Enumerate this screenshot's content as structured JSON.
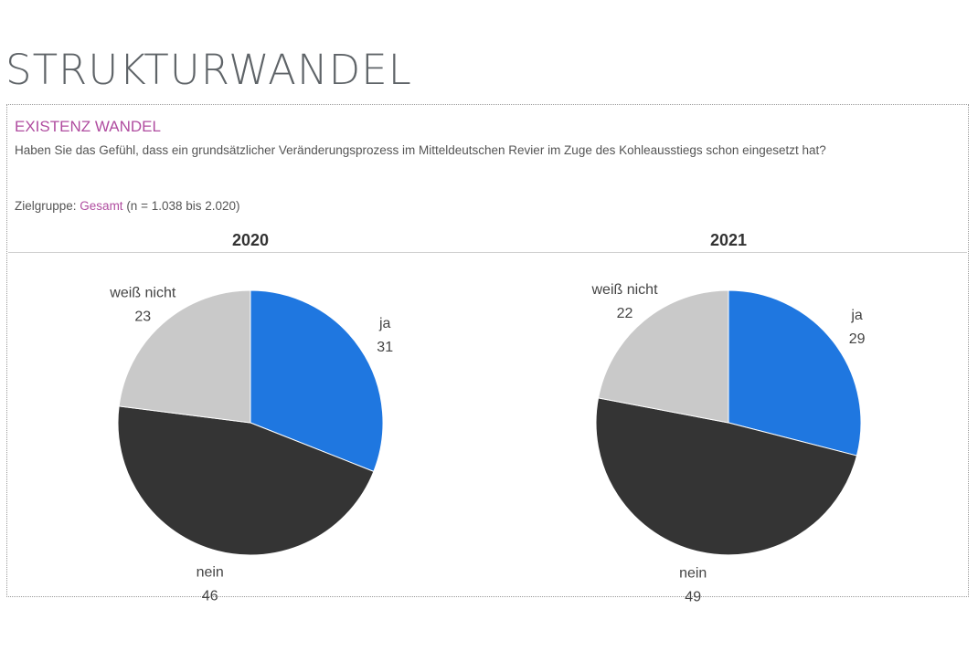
{
  "page_title": "STRUKTURWANDEL",
  "section_title": "EXISTENZ WANDEL",
  "question": "Haben Sie das Gefühl, dass ein grundsätzlicher Veränderungsprozess im Mitteldeutschen Revier im Zuge des Kohleausstiegs schon eingesetzt hat?",
  "zielgruppe": {
    "label": "Zielgruppe: ",
    "value": "Gesamt",
    "n_text": " (n = 1.038 bis 2.020)"
  },
  "colors": {
    "ja": "#1f77e0",
    "nein": "#343434",
    "weiss_nicht": "#c9c9c9",
    "accent": "#b04da0"
  },
  "chart_data": [
    {
      "type": "pie",
      "title": "2020",
      "slices": [
        {
          "label": "ja",
          "value": 31
        },
        {
          "label": "nein",
          "value": 46
        },
        {
          "label": "weiß nicht",
          "value": 23
        }
      ]
    },
    {
      "type": "pie",
      "title": "2021",
      "slices": [
        {
          "label": "ja",
          "value": 29
        },
        {
          "label": "nein",
          "value": 49
        },
        {
          "label": "weiß nicht",
          "value": 22
        }
      ]
    }
  ]
}
